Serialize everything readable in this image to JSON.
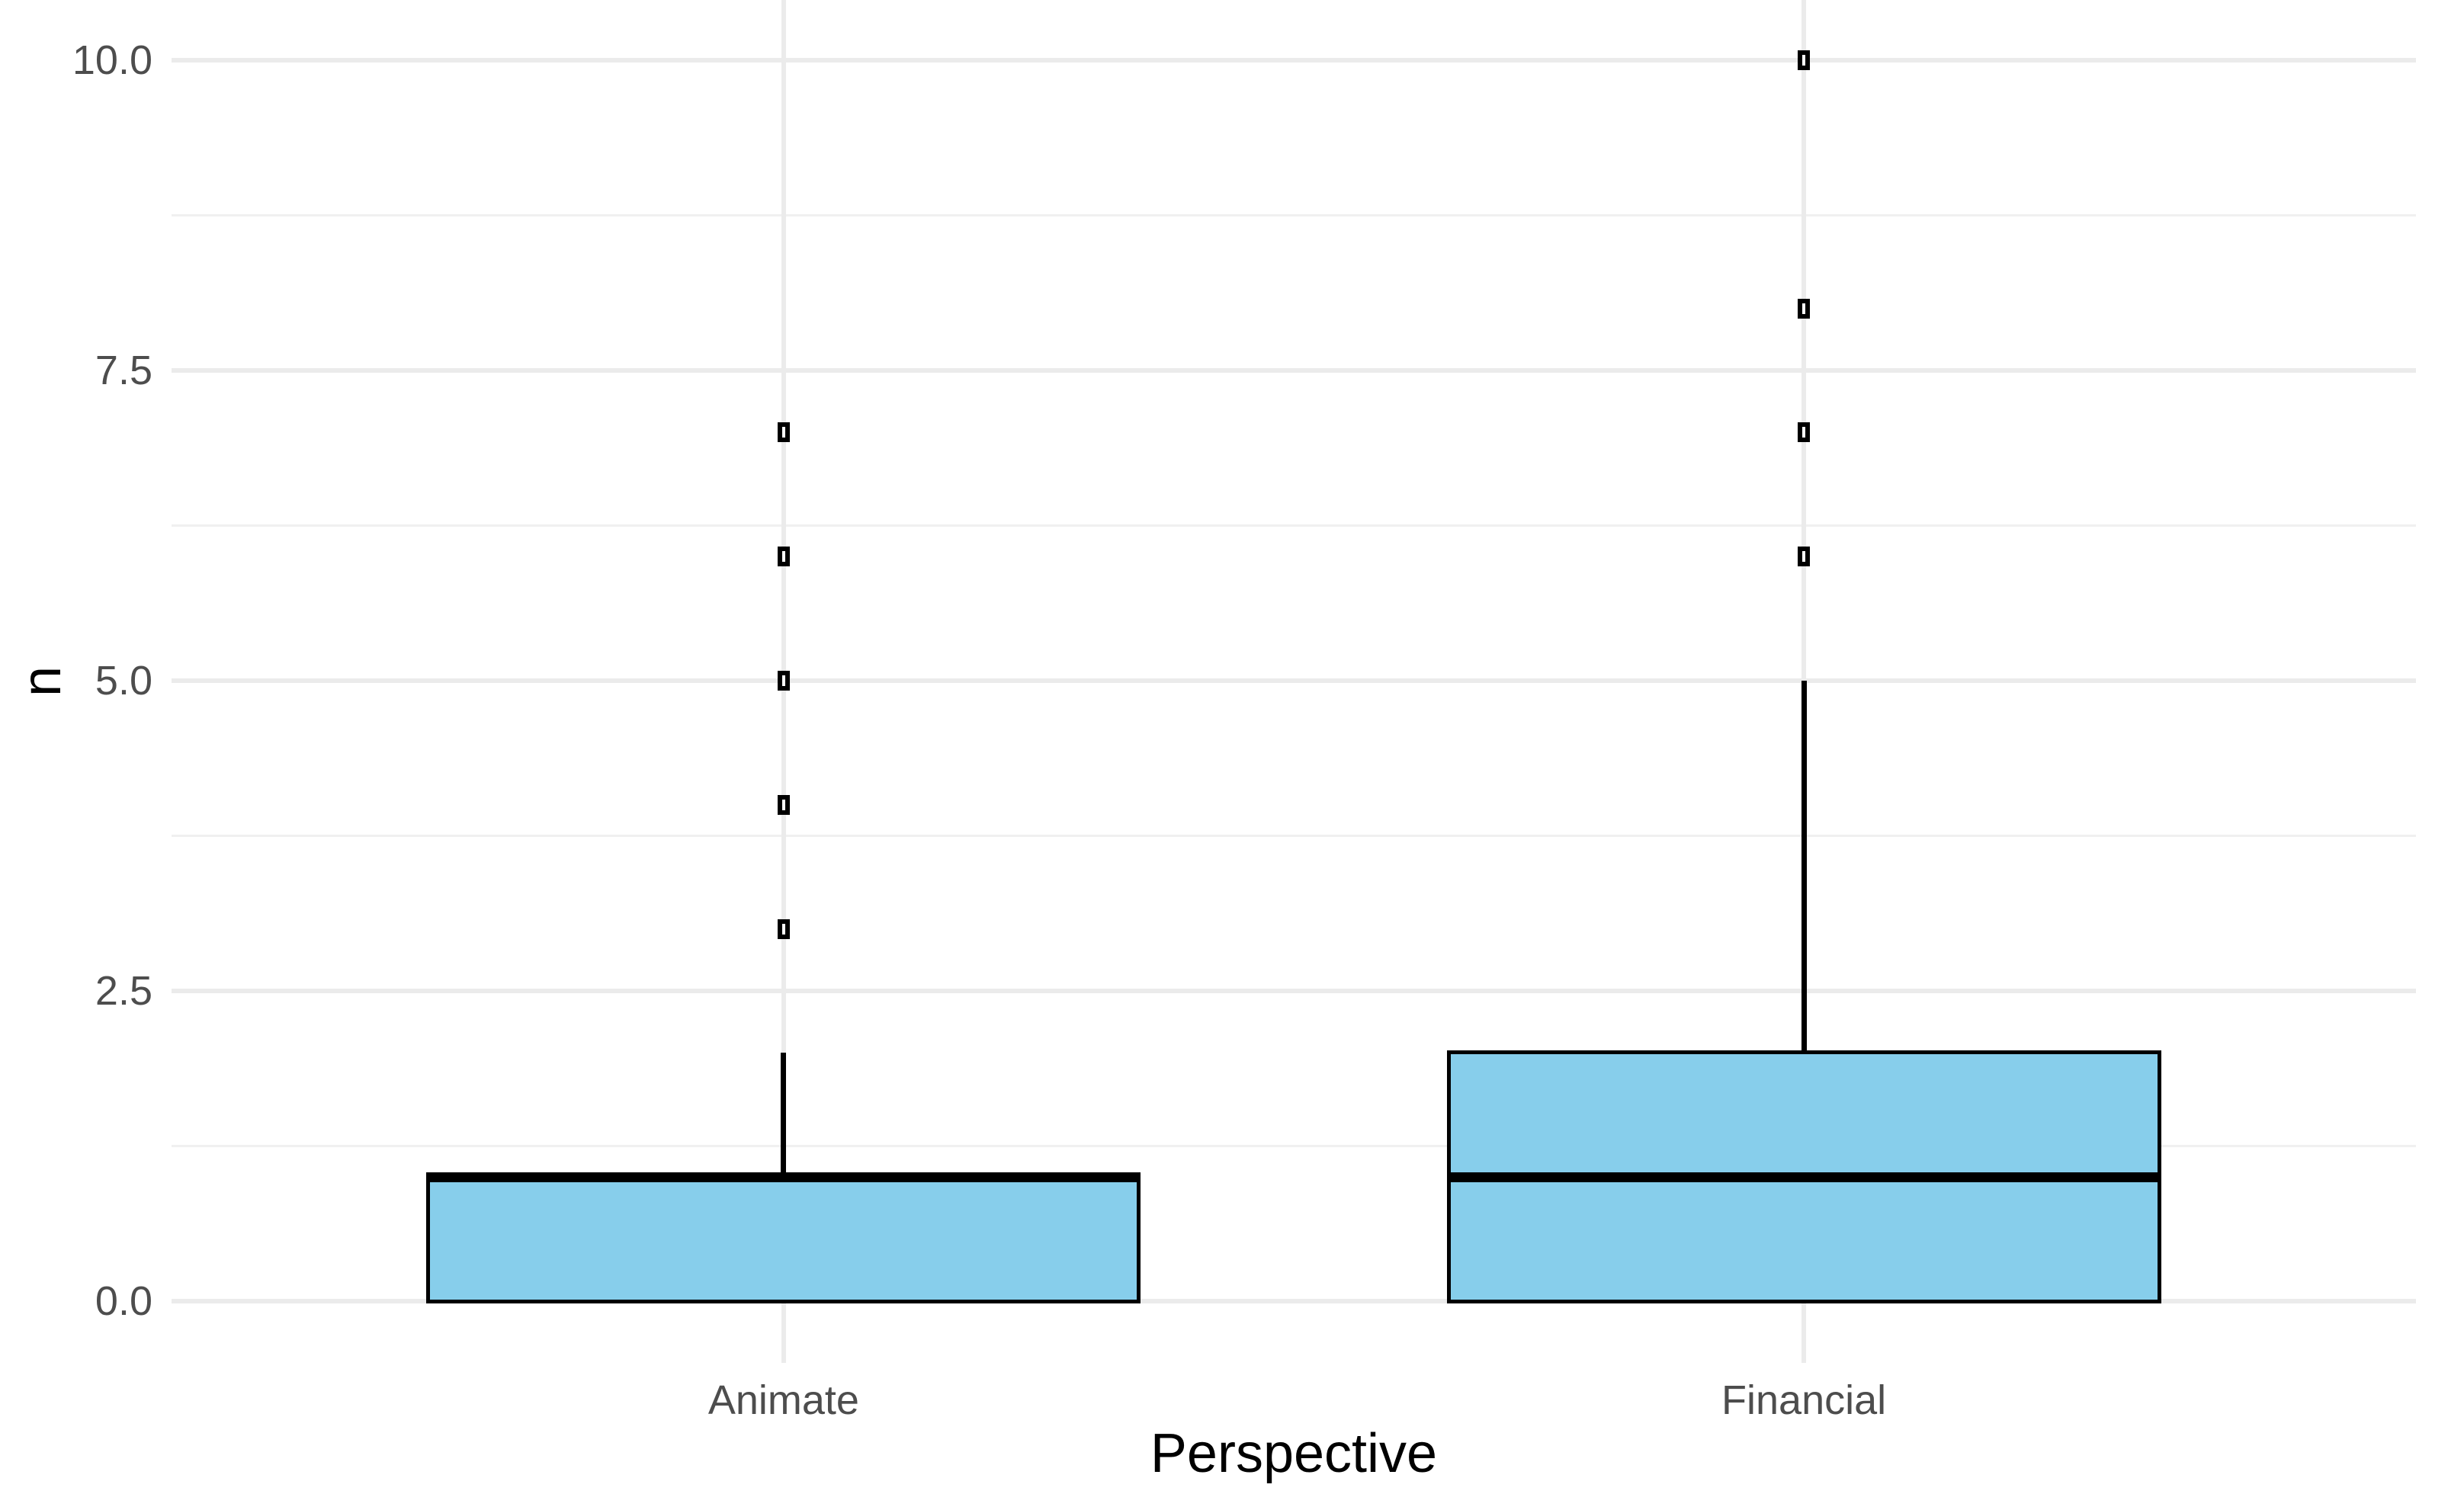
{
  "chart_data": {
    "type": "boxplot",
    "title": "",
    "xlabel": "Perspective",
    "ylabel": "n",
    "categories": [
      "Animate",
      "Financial"
    ],
    "series": [
      {
        "category": "Animate",
        "min": 0,
        "q1": 0,
        "median": 1,
        "q3": 1,
        "whisker_low": 0,
        "whisker_high": 2,
        "outliers": [
          3,
          4,
          5,
          6,
          7
        ]
      },
      {
        "category": "Financial",
        "min": 0,
        "q1": 0,
        "median": 1,
        "q3": 2,
        "whisker_low": 0,
        "whisker_high": 5,
        "outliers": [
          6,
          7,
          8,
          10
        ]
      }
    ],
    "y_axis": {
      "tick_labels": [
        "0.0",
        "2.5",
        "5.0",
        "7.5",
        "10.0"
      ],
      "tick_values": [
        0,
        2.5,
        5,
        7.5,
        10
      ],
      "minor_tick_values": [
        1.25,
        3.75,
        6.25,
        8.75
      ],
      "range": [
        -0.5,
        10.5
      ]
    },
    "x_axis": {
      "tick_labels": [
        "Animate",
        "Financial"
      ]
    },
    "legend": "none",
    "grid": "on",
    "style": {
      "box_fill": "#87CEEB",
      "box_stroke": "#000000",
      "grid_major_color": "#EBEBEB",
      "grid_minor_color": "#F0F0F0",
      "axis_text_color": "#4D4D4D",
      "axis_title_color": "#000000",
      "background": "#FFFFFF"
    }
  }
}
